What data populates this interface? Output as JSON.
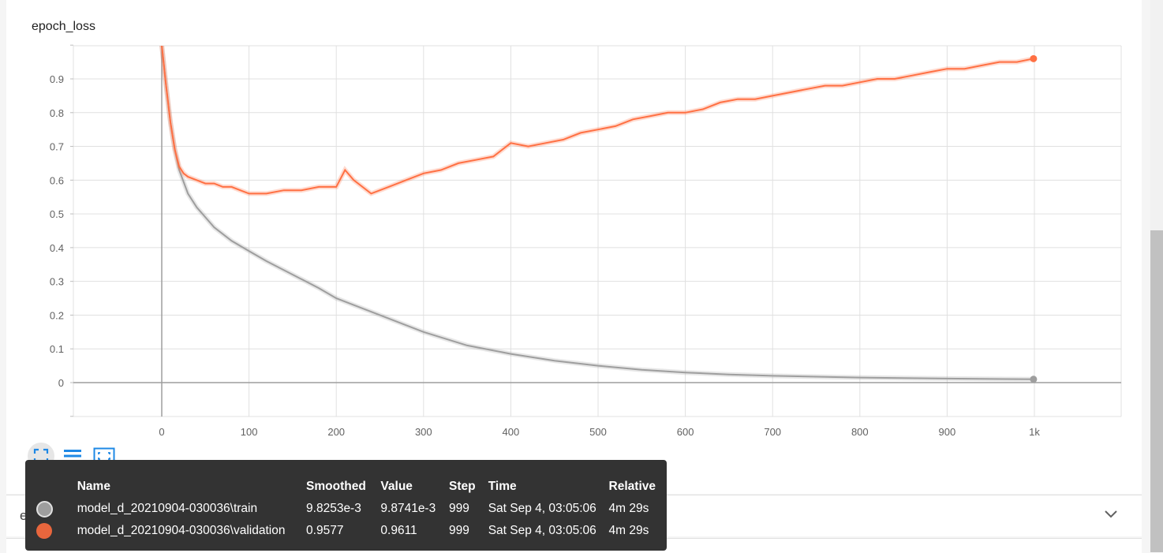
{
  "panel": {
    "title": "epoch_loss",
    "next_panel_title": "evaluation_acc_vs_iterations"
  },
  "icons": {
    "fullscreen": "fullscreen-icon",
    "lines": "menu-lines-icon",
    "fit": "fit-domain-icon",
    "chevron": "chevron-down-icon"
  },
  "colors": {
    "train": "#bdbdbd",
    "validation": "#ff7043",
    "accent": "#1e88e5"
  },
  "tooltip": {
    "headers": [
      "Name",
      "Smoothed",
      "Value",
      "Step",
      "Time",
      "Relative"
    ],
    "rows": [
      {
        "name": "model_d_20210904-030036\\train",
        "smoothed": "9.8253e-3",
        "value": "9.8741e-3",
        "step": "999",
        "time": "Sat Sep 4, 03:05:06",
        "relative": "4m 29s",
        "color": "#9e9e9e"
      },
      {
        "name": "model_d_20210904-030036\\validation",
        "smoothed": "0.9577",
        "value": "0.9611",
        "step": "999",
        "time": "Sat Sep 4, 03:05:06",
        "relative": "4m 29s",
        "color": "#ff7043"
      }
    ]
  },
  "chart_data": {
    "type": "line",
    "title": "epoch_loss",
    "xlim": [
      -100,
      1100
    ],
    "ylim": [
      -0.1,
      1.0
    ],
    "x_ticks": [
      0,
      100,
      200,
      300,
      400,
      500,
      600,
      700,
      800,
      900,
      1000
    ],
    "x_tick_labels": [
      "0",
      "100",
      "200",
      "300",
      "400",
      "500",
      "600",
      "700",
      "800",
      "900",
      "1k"
    ],
    "y_ticks": [
      0,
      0.1,
      0.2,
      0.3,
      0.4,
      0.5,
      0.6,
      0.7,
      0.8,
      0.9
    ],
    "y_tick_labels": [
      "0",
      "0.1",
      "0.2",
      "0.3",
      "0.4",
      "0.5",
      "0.6",
      "0.7",
      "0.8",
      "0.9"
    ],
    "grid": true,
    "series": [
      {
        "name": "model_d_20210904-030036\\train",
        "color": "#9e9e9e",
        "x": [
          0,
          5,
          10,
          15,
          20,
          30,
          40,
          50,
          60,
          80,
          100,
          120,
          150,
          180,
          200,
          250,
          300,
          350,
          400,
          450,
          500,
          550,
          600,
          650,
          700,
          800,
          900,
          999
        ],
        "y": [
          1.0,
          0.88,
          0.77,
          0.69,
          0.63,
          0.56,
          0.52,
          0.49,
          0.46,
          0.42,
          0.39,
          0.36,
          0.32,
          0.28,
          0.25,
          0.2,
          0.15,
          0.11,
          0.085,
          0.065,
          0.05,
          0.038,
          0.03,
          0.024,
          0.02,
          0.015,
          0.012,
          0.0098
        ]
      },
      {
        "name": "model_d_20210904-030036\\validation",
        "color": "#ff7043",
        "x": [
          0,
          5,
          10,
          15,
          20,
          25,
          30,
          40,
          50,
          60,
          70,
          80,
          90,
          100,
          120,
          140,
          160,
          180,
          200,
          210,
          220,
          240,
          260,
          280,
          300,
          320,
          340,
          360,
          380,
          400,
          420,
          440,
          460,
          480,
          500,
          520,
          540,
          560,
          580,
          600,
          620,
          640,
          660,
          680,
          700,
          720,
          740,
          760,
          780,
          800,
          820,
          840,
          860,
          880,
          900,
          920,
          940,
          960,
          980,
          999
        ],
        "y": [
          1.0,
          0.88,
          0.77,
          0.69,
          0.64,
          0.62,
          0.61,
          0.6,
          0.59,
          0.59,
          0.58,
          0.58,
          0.57,
          0.56,
          0.56,
          0.57,
          0.57,
          0.58,
          0.58,
          0.63,
          0.6,
          0.56,
          0.58,
          0.6,
          0.62,
          0.63,
          0.65,
          0.66,
          0.67,
          0.71,
          0.7,
          0.71,
          0.72,
          0.74,
          0.75,
          0.76,
          0.78,
          0.79,
          0.8,
          0.8,
          0.81,
          0.83,
          0.84,
          0.84,
          0.85,
          0.86,
          0.87,
          0.88,
          0.88,
          0.89,
          0.9,
          0.9,
          0.91,
          0.92,
          0.93,
          0.93,
          0.94,
          0.95,
          0.95,
          0.96
        ]
      }
    ]
  }
}
